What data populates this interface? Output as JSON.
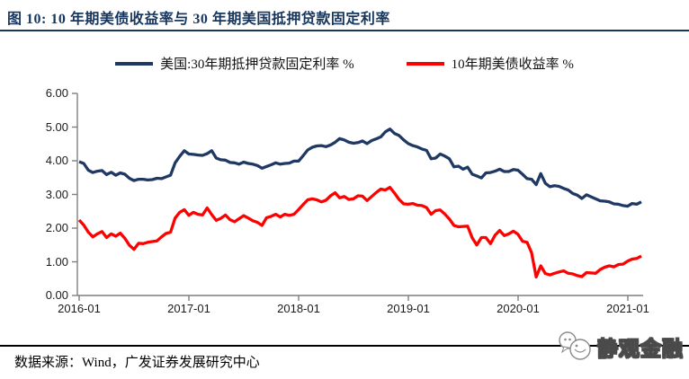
{
  "page": {
    "background": "#ffffff"
  },
  "header": {
    "title": "图 10:  10 年期美债收益率与 30 年期美国抵押贷款固定利率",
    "underline_color": "#17365d"
  },
  "legend": {
    "position": "top-center",
    "items": [
      {
        "label": "美国:30年期抵押贷款固定利率 %",
        "color": "#1f3864"
      },
      {
        "label": "10年期美债收益率 %",
        "color": "#ff0000"
      }
    ]
  },
  "chart_data": {
    "type": "line",
    "title": "10 年期美债收益率与 30 年期美国抵押贷款固定利率",
    "xlabel": "",
    "ylabel": "",
    "ylim": [
      0,
      6
    ],
    "grid": false,
    "legend_position": "top",
    "y_tick_labels": [
      "0.00",
      "1.00",
      "2.00",
      "3.00",
      "4.00",
      "5.00",
      "6.00"
    ],
    "x_tick_labels": [
      "2016-01",
      "2017-01",
      "2018-01",
      "2019-01",
      "2020-01",
      "2021-01"
    ],
    "x_range": "2016-01 to 2021-02, two points per month",
    "axis_color": "#7f7f7f",
    "series": [
      {
        "name": "美国:30年期抵押贷款固定利率 %",
        "color": "#1f3864",
        "values": [
          3.97,
          3.92,
          3.72,
          3.65,
          3.69,
          3.71,
          3.59,
          3.66,
          3.57,
          3.64,
          3.6,
          3.48,
          3.41,
          3.45,
          3.45,
          3.43,
          3.44,
          3.48,
          3.47,
          3.52,
          3.57,
          3.94,
          4.13,
          4.3,
          4.2,
          4.19,
          4.17,
          4.16,
          4.21,
          4.3,
          4.08,
          4.03,
          4.02,
          3.95,
          3.94,
          3.9,
          3.96,
          3.92,
          3.9,
          3.86,
          3.78,
          3.83,
          3.88,
          3.94,
          3.9,
          3.92,
          3.93,
          3.99,
          3.99,
          4.15,
          4.32,
          4.4,
          4.44,
          4.45,
          4.42,
          4.47,
          4.55,
          4.66,
          4.62,
          4.55,
          4.52,
          4.54,
          4.59,
          4.51,
          4.6,
          4.65,
          4.71,
          4.86,
          4.94,
          4.81,
          4.75,
          4.62,
          4.51,
          4.45,
          4.41,
          4.35,
          4.31,
          4.06,
          4.08,
          4.2,
          4.14,
          4.06,
          3.82,
          3.84,
          3.75,
          3.81,
          3.6,
          3.55,
          3.49,
          3.64,
          3.65,
          3.69,
          3.75,
          3.68,
          3.68,
          3.74,
          3.72,
          3.6,
          3.47,
          3.45,
          3.29,
          3.62,
          3.33,
          3.23,
          3.26,
          3.24,
          3.18,
          3.13,
          3.03,
          2.98,
          2.88,
          2.99,
          2.93,
          2.87,
          2.81,
          2.8,
          2.78,
          2.72,
          2.71,
          2.67,
          2.65,
          2.73,
          2.71,
          2.78
        ]
      },
      {
        "name": "10年期美债收益率 %",
        "color": "#ff0000",
        "values": [
          2.24,
          2.09,
          1.88,
          1.74,
          1.83,
          1.9,
          1.72,
          1.83,
          1.76,
          1.85,
          1.7,
          1.49,
          1.37,
          1.55,
          1.54,
          1.58,
          1.6,
          1.62,
          1.74,
          1.84,
          1.88,
          2.3,
          2.47,
          2.55,
          2.38,
          2.47,
          2.41,
          2.39,
          2.6,
          2.4,
          2.23,
          2.29,
          2.39,
          2.25,
          2.19,
          2.28,
          2.37,
          2.3,
          2.22,
          2.17,
          2.08,
          2.31,
          2.35,
          2.41,
          2.33,
          2.41,
          2.38,
          2.41,
          2.55,
          2.7,
          2.84,
          2.87,
          2.84,
          2.78,
          2.83,
          2.96,
          3.05,
          2.9,
          2.94,
          2.85,
          2.87,
          2.96,
          2.95,
          2.82,
          2.94,
          3.06,
          3.16,
          3.13,
          3.21,
          3.04,
          2.85,
          2.72,
          2.71,
          2.73,
          2.68,
          2.67,
          2.61,
          2.41,
          2.52,
          2.54,
          2.42,
          2.27,
          2.08,
          2.04,
          2.05,
          2.06,
          1.71,
          1.5,
          1.72,
          1.72,
          1.54,
          1.79,
          1.93,
          1.78,
          1.83,
          1.91,
          1.82,
          1.61,
          1.58,
          1.27,
          0.55,
          0.88,
          0.65,
          0.61,
          0.66,
          0.7,
          0.73,
          0.66,
          0.64,
          0.59,
          0.56,
          0.68,
          0.67,
          0.66,
          0.77,
          0.84,
          0.88,
          0.85,
          0.92,
          0.93,
          1.02,
          1.08,
          1.1,
          1.17
        ]
      }
    ]
  },
  "footer": {
    "source": "数据来源：Wind，广发证券发展研究中心",
    "logo_text": "静观金融"
  }
}
